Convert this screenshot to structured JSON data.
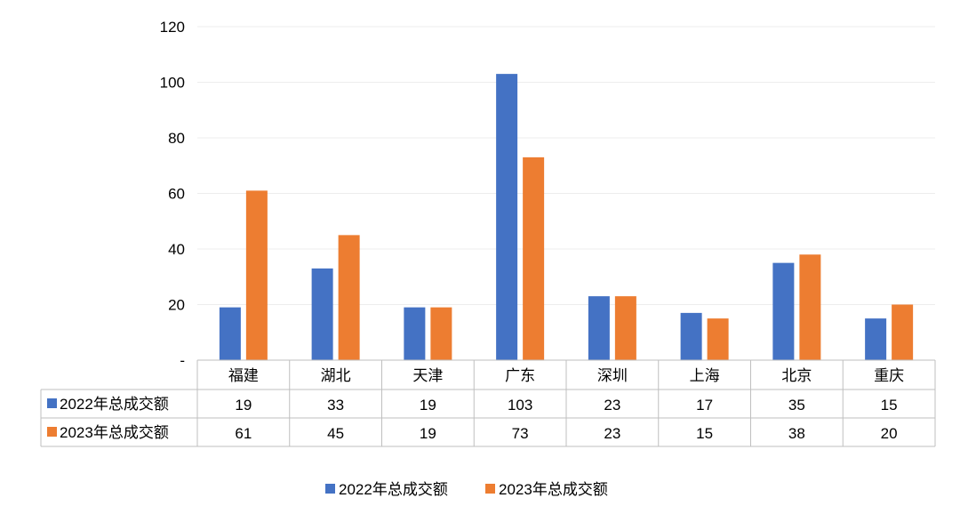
{
  "chart_data": {
    "type": "bar",
    "categories": [
      "福建",
      "湖北",
      "天津",
      "广东",
      "深圳",
      "上海",
      "北京",
      "重庆"
    ],
    "series": [
      {
        "name": "2022年总成交额",
        "values": [
          19,
          33,
          19,
          103,
          23,
          17,
          35,
          15
        ],
        "color": "#4472C4"
      },
      {
        "name": "2023年总成交额",
        "values": [
          61,
          45,
          19,
          73,
          23,
          15,
          38,
          20
        ],
        "color": "#ED7D31"
      }
    ],
    "yticks": [
      "-",
      "20",
      "40",
      "60",
      "80",
      "100",
      "120"
    ],
    "ylim": [
      0,
      120
    ],
    "grid": true,
    "legend": "bottom-center",
    "data_table": true,
    "table_values_2022": [
      "19",
      "33",
      "19",
      "103",
      "23",
      "17",
      "35",
      "15"
    ],
    "table_values_2023": [
      "61",
      "45",
      "19",
      "73",
      "23",
      "15",
      "38",
      "20"
    ]
  }
}
